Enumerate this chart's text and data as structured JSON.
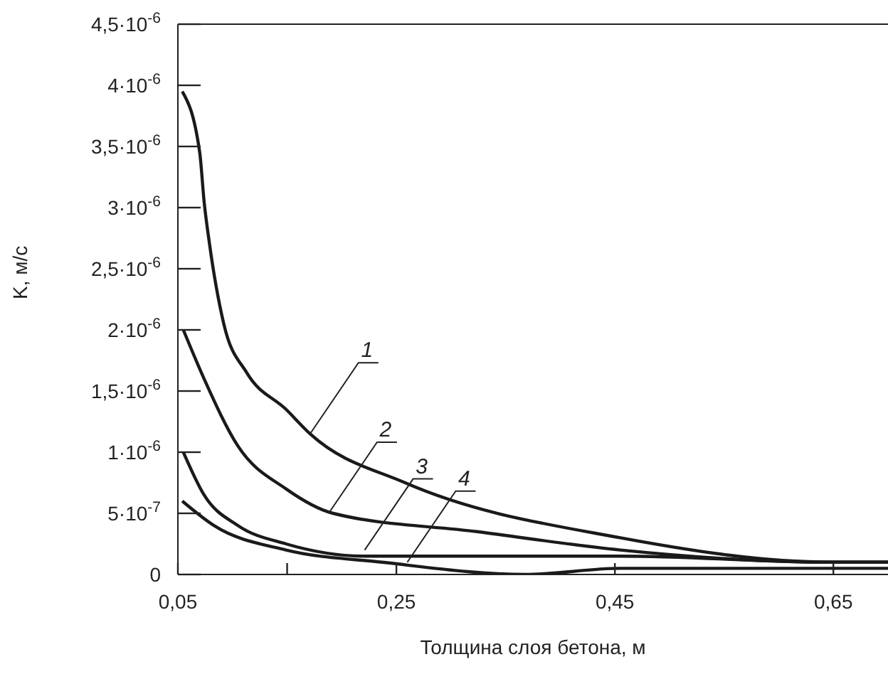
{
  "chart_data": {
    "type": "line",
    "xlabel": "Толщина слоя бетона, м",
    "ylabel": "K, м/с",
    "xlim": [
      0.05,
      0.7
    ],
    "xticks": [
      {
        "value": 0.05,
        "label": "0,05"
      },
      {
        "value": 0.15,
        "label": null
      },
      {
        "value": 0.25,
        "label": "0,25"
      },
      {
        "value": 0.45,
        "label": "0,45"
      },
      {
        "value": 0.65,
        "label": "0,65"
      }
    ],
    "ylim": [
      0,
      4.5e-06
    ],
    "yticks": [
      0,
      {
        "value": 5e-07,
        "label": "5·10$^{-7}$"
      },
      {
        "value": 1e-06,
        "label": "1·10$^{-6}$"
      },
      {
        "value": 1.5e-06,
        "label": "1,5·10$^{-6}$"
      },
      {
        "value": 2e-06,
        "label": "2·10$^{-6}$"
      },
      {
        "value": 2.5e-06,
        "label": "2,5·10$^{-6}$"
      },
      {
        "value": 3e-06,
        "label": "3·10$^{-6}$"
      },
      {
        "value": 3.5e-06,
        "label": "3,5·10$^{-6}$"
      },
      {
        "value": 4e-06,
        "label": "4·10$^{-6}$"
      },
      {
        "value": 4.5e-06,
        "label": "4,5·10$^{-6}$"
      }
    ],
    "grid": false,
    "legend": false,
    "marker": "none",
    "line_style": "solid",
    "series": [
      {
        "color": "#1a1a1a",
        "x": [
          0.054,
          0.07,
          0.074,
          0.079,
          0.092,
          0.113,
          0.149,
          0.171,
          0.258,
          0.455,
          0.65,
          0.7
        ],
        "values": [
          3.95e-06,
          3.45e-06,
          3.05e-06,
          2.7e-06,
          2.05e-06,
          1.65e-06,
          1.35e-06,
          1.15e-06,
          7.5e-07,
          3e-07,
          1e-07,
          1e-07
        ]
      },
      {
        "color": "#1a1a1a",
        "x": [
          0.055,
          0.074,
          0.105,
          0.149,
          0.192,
          0.324,
          0.455,
          0.65,
          0.7
        ],
        "values": [
          2e-06,
          1.6e-06,
          1.05e-06,
          7e-07,
          5e-07,
          3.5e-07,
          2e-07,
          1e-07,
          1e-07
        ]
      },
      {
        "color": "#1a1a1a",
        "x": [
          0.055,
          0.074,
          0.105,
          0.149,
          0.221,
          0.324,
          0.455,
          0.65,
          0.7
        ],
        "values": [
          1e-06,
          6.5e-07,
          4e-07,
          2.5e-07,
          1.5e-07,
          1.5e-07,
          1.5e-07,
          1e-07,
          1e-07
        ]
      },
      {
        "color": "#1a1a1a",
        "x": [
          0.054,
          0.083,
          0.149,
          0.237,
          0.368,
          0.455,
          0.587,
          0.7
        ],
        "values": [
          6e-07,
          4e-07,
          2e-07,
          1e-07,
          0,
          5e-08,
          5e-08,
          5e-08
        ]
      }
    ],
    "annotations": [
      {
        "text": "1",
        "x": 0.171,
        "y": 1.15e-06
      },
      {
        "text": "2",
        "x": 0.188,
        "y": 5e-07
      },
      {
        "text": "3",
        "x": 0.221,
        "y": 2e-07
      },
      {
        "text": "4",
        "x": 0.26,
        "y": 1e-07
      }
    ]
  }
}
